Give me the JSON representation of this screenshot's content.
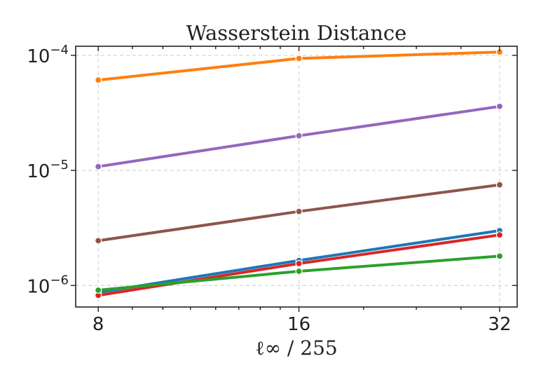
{
  "chart_data": {
    "type": "line",
    "title": "Wasserstein Distance",
    "xlabel": "ℓ∞ / 255",
    "ylabel": "",
    "x_scale": "log2",
    "y_scale": "log10",
    "x": [
      8,
      16,
      32
    ],
    "x_ticks": [
      8,
      16,
      32
    ],
    "x_tick_labels": [
      "8",
      "16",
      "32"
    ],
    "xlim": [
      7.4,
      34
    ],
    "y_ticks": [
      1e-06,
      1e-05,
      0.0001
    ],
    "y_tick_labels": [
      {
        "base": "10",
        "exp": "−6"
      },
      {
        "base": "10",
        "exp": "−5"
      },
      {
        "base": "10",
        "exp": "−4"
      }
    ],
    "ylim": [
      6.5e-07,
      0.00012
    ],
    "grid": true,
    "legend": "none",
    "series": [
      {
        "color": "#ff7f0e",
        "values": [
          6.1e-05,
          9.4e-05,
          0.000107
        ]
      },
      {
        "color": "#9467bd",
        "values": [
          1.08e-05,
          2e-05,
          3.6e-05
        ]
      },
      {
        "color": "#8c564b",
        "values": [
          2.45e-06,
          4.4e-06,
          7.5e-06
        ]
      },
      {
        "color": "#1f77b4",
        "values": [
          8.7e-07,
          1.65e-06,
          3e-06
        ]
      },
      {
        "color": "#d62728",
        "values": [
          8.2e-07,
          1.55e-06,
          2.75e-06
        ]
      },
      {
        "color": "#2ca02c",
        "values": [
          9.1e-07,
          1.33e-06,
          1.8e-06
        ]
      }
    ]
  }
}
